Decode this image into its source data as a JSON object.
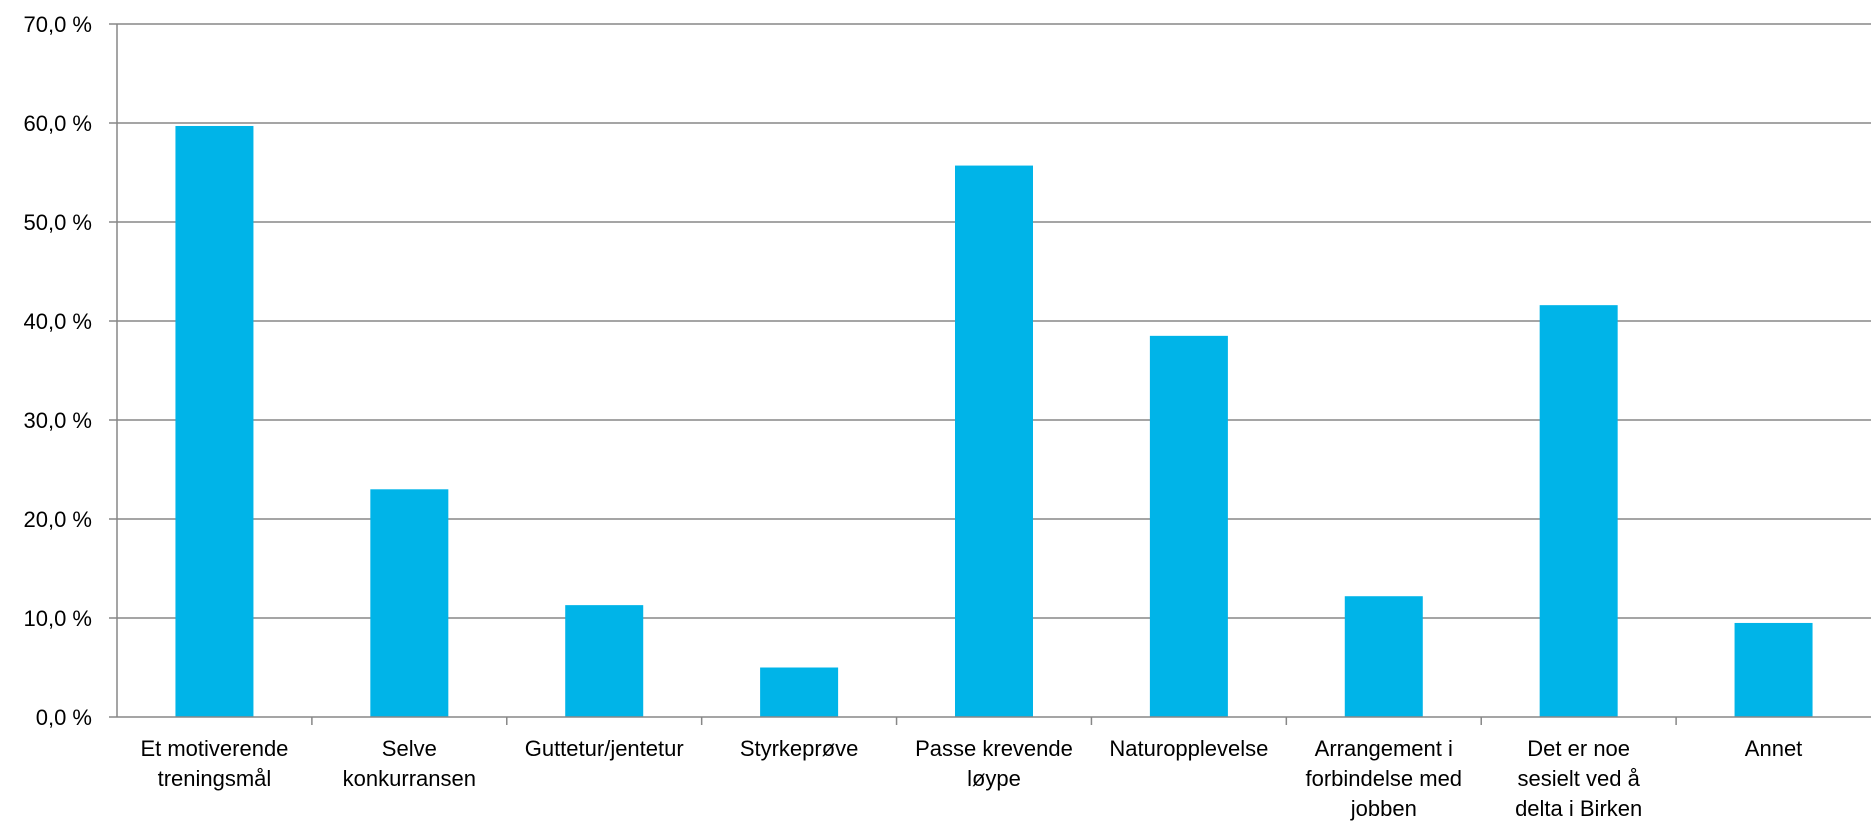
{
  "chart_data": {
    "type": "bar",
    "categories": [
      [
        "Et motiverende",
        "treningsmål"
      ],
      [
        "Selve",
        "konkurransen"
      ],
      [
        "Guttetur/jentetur"
      ],
      [
        "Styrkeprøve"
      ],
      [
        "Passe krevende",
        "løype"
      ],
      [
        "Naturopplevelse"
      ],
      [
        "Arrangement i",
        "forbindelse med",
        "jobben"
      ],
      [
        "Det er noe",
        "sesielt ved å",
        "delta i Birken"
      ],
      [
        "Annet"
      ]
    ],
    "values": [
      59.7,
      23.0,
      11.3,
      5.0,
      55.7,
      38.5,
      12.2,
      41.6,
      9.5
    ],
    "ylim": [
      0,
      70
    ],
    "yticks": [
      "0,0 %",
      "10,0 %",
      "20,0 %",
      "30,0 %",
      "40,0 %",
      "50,0 %",
      "60,0 %",
      "70,0 %"
    ],
    "grid": true,
    "legend": "none",
    "bar_color": "#00b4e8",
    "grid_color": "#878787",
    "axis_color": "#878787"
  }
}
